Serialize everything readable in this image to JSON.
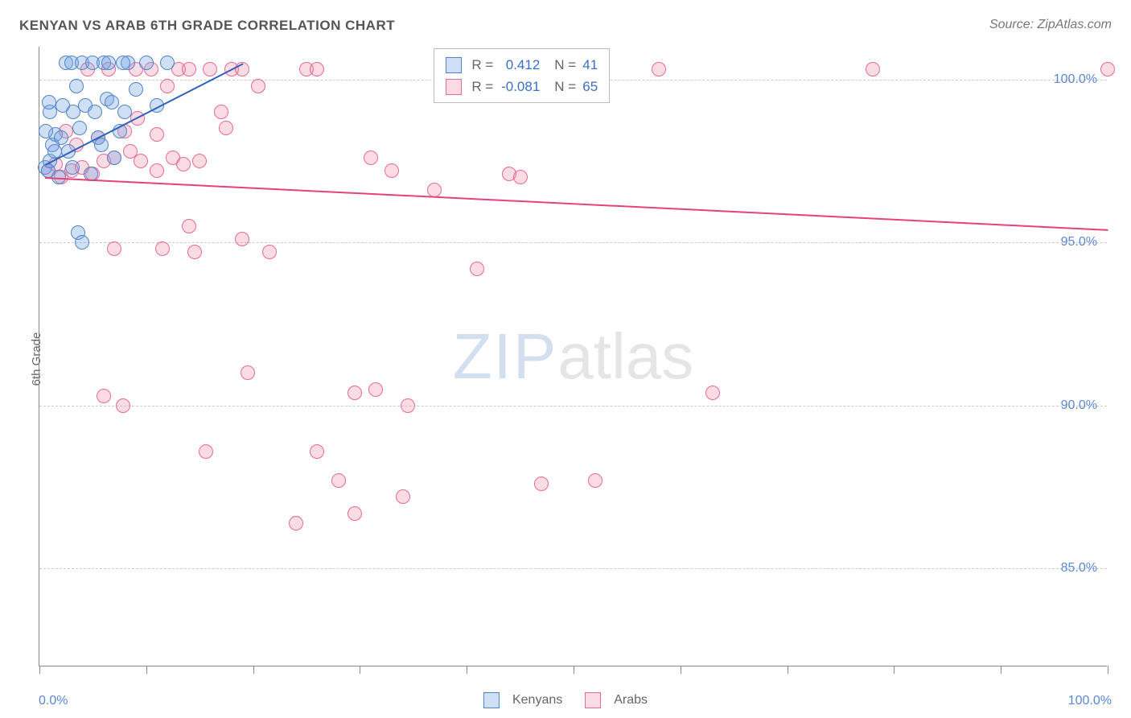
{
  "title": "KENYAN VS ARAB 6TH GRADE CORRELATION CHART",
  "source": "Source: ZipAtlas.com",
  "y_axis_label": "6th Grade",
  "watermark": {
    "part1": "ZIP",
    "part2": "atlas"
  },
  "chart": {
    "type": "scatter",
    "background_color": "#ffffff",
    "grid_color": "#cccccc",
    "axis_color": "#888888",
    "tick_label_color": "#5b87d6",
    "xlim": [
      0,
      100
    ],
    "ylim": [
      82,
      101
    ],
    "x_ticks": [
      0,
      10,
      20,
      30,
      40,
      50,
      60,
      70,
      80,
      90,
      100
    ],
    "x_tick_labels": {
      "0": "0.0%",
      "100": "100.0%"
    },
    "y_grid": [
      {
        "y": 100,
        "label": "100.0%"
      },
      {
        "y": 95,
        "label": "95.0%"
      },
      {
        "y": 90,
        "label": "90.0%"
      },
      {
        "y": 85,
        "label": "85.0%"
      }
    ],
    "marker_radius": 9,
    "marker_border_width": 1.5,
    "series": [
      {
        "name": "Kenyans",
        "fill": "rgba(118,163,224,0.35)",
        "stroke": "#4f85cf",
        "r_value": "0.412",
        "n_value": "41",
        "trend": {
          "x1": 0.5,
          "y1": 97.4,
          "x2": 19,
          "y2": 100.5,
          "color": "#2f63b8"
        },
        "points": [
          [
            0.5,
            97.3
          ],
          [
            0.8,
            97.2
          ],
          [
            1.0,
            97.5
          ],
          [
            1.2,
            98.0
          ],
          [
            1.5,
            98.3
          ],
          [
            1.0,
            99.0
          ],
          [
            1.8,
            97.0
          ],
          [
            2.0,
            98.2
          ],
          [
            2.2,
            99.2
          ],
          [
            2.5,
            100.5
          ],
          [
            3.0,
            100.5
          ],
          [
            3.2,
            99.0
          ],
          [
            3.5,
            99.8
          ],
          [
            3.8,
            98.5
          ],
          [
            4.0,
            100.5
          ],
          [
            4.3,
            99.2
          ],
          [
            4.8,
            97.1
          ],
          [
            5.0,
            100.5
          ],
          [
            5.2,
            99.0
          ],
          [
            5.5,
            98.2
          ],
          [
            6.0,
            100.5
          ],
          [
            6.3,
            99.4
          ],
          [
            6.8,
            99.3
          ],
          [
            7.0,
            97.6
          ],
          [
            7.5,
            98.4
          ],
          [
            8.0,
            99.0
          ],
          [
            8.3,
            100.5
          ],
          [
            9.0,
            99.7
          ],
          [
            10.0,
            100.5
          ],
          [
            11.0,
            99.2
          ],
          [
            12.0,
            100.5
          ],
          [
            2.7,
            97.8
          ],
          [
            3.1,
            97.3
          ],
          [
            3.6,
            95.3
          ],
          [
            4.0,
            95.0
          ],
          [
            1.4,
            97.8
          ],
          [
            0.6,
            98.4
          ],
          [
            0.9,
            99.3
          ],
          [
            5.8,
            98.0
          ],
          [
            6.5,
            100.5
          ],
          [
            7.8,
            100.5
          ]
        ]
      },
      {
        "name": "Arabs",
        "fill": "rgba(242,140,170,0.30)",
        "stroke": "#e66a94",
        "r_value": "-0.081",
        "n_value": "65",
        "trend": {
          "x1": 0.5,
          "y1": 97.0,
          "x2": 100,
          "y2": 95.4,
          "color": "#e5427b"
        },
        "points": [
          [
            0.8,
            97.2
          ],
          [
            1.5,
            97.4
          ],
          [
            2.0,
            97.0
          ],
          [
            2.5,
            98.4
          ],
          [
            3.0,
            97.2
          ],
          [
            3.5,
            98.0
          ],
          [
            4.0,
            97.3
          ],
          [
            4.5,
            100.3
          ],
          [
            5.0,
            97.1
          ],
          [
            5.5,
            98.2
          ],
          [
            6.0,
            97.5
          ],
          [
            6.5,
            100.3
          ],
          [
            7.0,
            97.6
          ],
          [
            8.0,
            98.4
          ],
          [
            8.5,
            97.8
          ],
          [
            9.0,
            100.3
          ],
          [
            9.5,
            97.5
          ],
          [
            10.5,
            100.3
          ],
          [
            11.0,
            97.2
          ],
          [
            12.0,
            99.8
          ],
          [
            12.5,
            97.6
          ],
          [
            13.0,
            100.3
          ],
          [
            14.0,
            100.3
          ],
          [
            15.0,
            97.5
          ],
          [
            16.0,
            100.3
          ],
          [
            17.0,
            99.0
          ],
          [
            17.5,
            98.5
          ],
          [
            18.0,
            100.3
          ],
          [
            19.0,
            100.3
          ],
          [
            25.0,
            100.3
          ],
          [
            26.0,
            100.3
          ],
          [
            31.0,
            97.6
          ],
          [
            33.0,
            97.2
          ],
          [
            37.0,
            96.6
          ],
          [
            44.0,
            97.1
          ],
          [
            58.0,
            100.3
          ],
          [
            78.0,
            100.3
          ],
          [
            100.0,
            100.3
          ],
          [
            7.0,
            94.8
          ],
          [
            11.5,
            94.8
          ],
          [
            14.5,
            94.7
          ],
          [
            14.0,
            95.5
          ],
          [
            19.0,
            95.1
          ],
          [
            21.5,
            94.7
          ],
          [
            6.0,
            90.3
          ],
          [
            7.8,
            90.0
          ],
          [
            19.5,
            91.0
          ],
          [
            31.5,
            90.5
          ],
          [
            29.5,
            90.4
          ],
          [
            63.0,
            90.4
          ],
          [
            15.6,
            88.6
          ],
          [
            26.0,
            88.6
          ],
          [
            28.0,
            87.7
          ],
          [
            29.5,
            86.7
          ],
          [
            34.0,
            87.2
          ],
          [
            24.0,
            86.4
          ],
          [
            41.0,
            94.2
          ],
          [
            47.0,
            87.6
          ],
          [
            52.0,
            87.7
          ],
          [
            45.0,
            97.0
          ],
          [
            34.5,
            90.0
          ],
          [
            11.0,
            98.3
          ],
          [
            9.2,
            98.8
          ],
          [
            13.5,
            97.4
          ],
          [
            20.5,
            99.8
          ]
        ]
      }
    ]
  },
  "top_legend": {
    "r_label": "R =",
    "n_label": "N ="
  },
  "bottom_legend": {
    "items": [
      "Kenyans",
      "Arabs"
    ]
  }
}
